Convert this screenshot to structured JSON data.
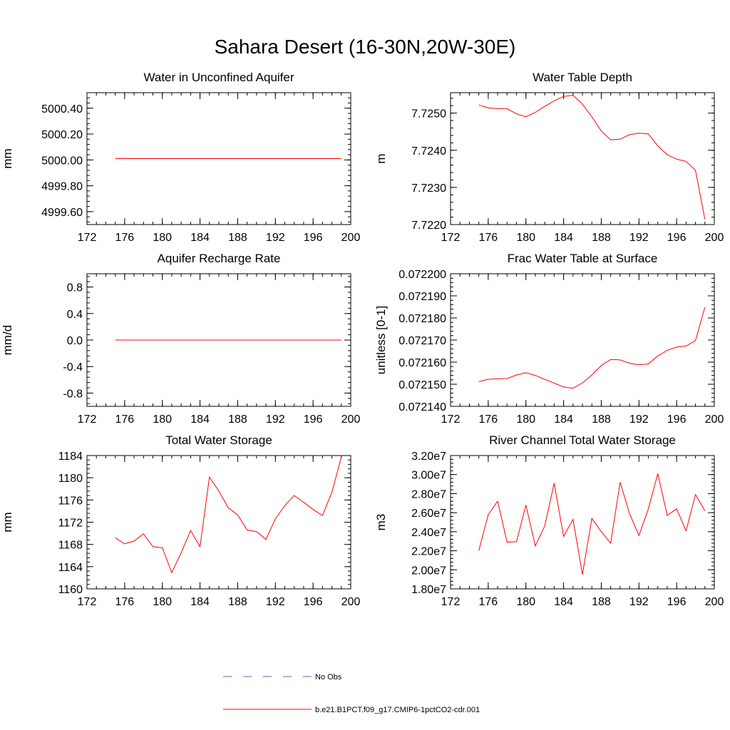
{
  "title": "Sahara Desert (16-30N,20W-30E)",
  "legend": {
    "items": [
      {
        "label": "No Obs",
        "color": "#5c5cc8",
        "style": "dashed"
      },
      {
        "label": "b.e21.B1PCT.f09_g17.CMIP6-1pctCO2-cdr.001",
        "color": "#ff0000",
        "style": "solid"
      }
    ]
  },
  "chart_data": [
    {
      "type": "line",
      "title": "Water in Unconfined Aquifer",
      "ylabel": "mm",
      "xlim": [
        172,
        200
      ],
      "ylim": [
        4999.5,
        5000.52
      ],
      "xticks": [
        172,
        176,
        180,
        184,
        188,
        192,
        196,
        200
      ],
      "xtick_labels": [
        "172",
        "176",
        "180",
        "184",
        "188",
        "192",
        "196",
        "200"
      ],
      "yticks": [
        4999.6,
        4999.8,
        5000.0,
        5000.2,
        5000.4
      ],
      "ytick_labels": [
        "4999.60",
        "4999.80",
        "5000.00",
        "5000.20",
        "5000.40"
      ],
      "series": [
        {
          "color": "#ff0000",
          "x": [
            175,
            176,
            177,
            178,
            179,
            180,
            181,
            182,
            183,
            184,
            185,
            186,
            187,
            188,
            189,
            190,
            191,
            192,
            193,
            194,
            195,
            196,
            197,
            198,
            199
          ],
          "y": [
            5000.01,
            5000.01,
            5000.01,
            5000.01,
            5000.01,
            5000.01,
            5000.01,
            5000.01,
            5000.01,
            5000.01,
            5000.01,
            5000.01,
            5000.01,
            5000.01,
            5000.01,
            5000.01,
            5000.01,
            5000.01,
            5000.01,
            5000.01,
            5000.01,
            5000.01,
            5000.01,
            5000.01,
            5000.01
          ]
        }
      ]
    },
    {
      "type": "line",
      "title": "Water Table Depth",
      "ylabel": "m",
      "xlim": [
        172,
        200
      ],
      "ylim": [
        7.722,
        7.72555
      ],
      "xticks": [
        172,
        176,
        180,
        184,
        188,
        192,
        196,
        200
      ],
      "xtick_labels": [
        "172",
        "176",
        "180",
        "184",
        "188",
        "192",
        "196",
        "200"
      ],
      "yticks": [
        7.722,
        7.723,
        7.724,
        7.725
      ],
      "ytick_labels": [
        "7.7220",
        "7.7230",
        "7.7240",
        "7.7250"
      ],
      "series": [
        {
          "color": "#ff0000",
          "x": [
            175,
            176,
            177,
            178,
            179,
            180,
            181,
            182,
            183,
            184,
            185,
            186,
            187,
            188,
            189,
            190,
            191,
            192,
            193,
            194,
            195,
            196,
            197,
            198,
            199
          ],
          "y": [
            7.72522,
            7.72514,
            7.72512,
            7.72512,
            7.72498,
            7.7249,
            7.72502,
            7.72518,
            7.72533,
            7.72545,
            7.72548,
            7.72524,
            7.7249,
            7.72452,
            7.72428,
            7.7243,
            7.72442,
            7.72446,
            7.72444,
            7.72412,
            7.72388,
            7.72376,
            7.7237,
            7.72346,
            7.72214
          ]
        }
      ]
    },
    {
      "type": "line",
      "title": "Aquifer Recharge Rate",
      "ylabel": "mm/d",
      "xlim": [
        172,
        200
      ],
      "ylim": [
        -1.0,
        1.0
      ],
      "xticks": [
        172,
        176,
        180,
        184,
        188,
        192,
        196,
        200
      ],
      "xtick_labels": [
        "172",
        "176",
        "180",
        "184",
        "188",
        "192",
        "196",
        "200"
      ],
      "yticks": [
        -0.8,
        -0.4,
        0.0,
        0.4,
        0.8
      ],
      "ytick_labels": [
        "-0.8",
        "-0.4",
        "0.0",
        "0.4",
        "0.8"
      ],
      "series": [
        {
          "color": "#ff0000",
          "x": [
            175,
            176,
            177,
            178,
            179,
            180,
            181,
            182,
            183,
            184,
            185,
            186,
            187,
            188,
            189,
            190,
            191,
            192,
            193,
            194,
            195,
            196,
            197,
            198,
            199
          ],
          "y": [
            0,
            0,
            0,
            0,
            0,
            0,
            0,
            0,
            0,
            0,
            0,
            0,
            0,
            0,
            0,
            0,
            0,
            0,
            0,
            0,
            0,
            0,
            0,
            0,
            0
          ]
        }
      ]
    },
    {
      "type": "line",
      "title": "Frac Water Table at Surface",
      "ylabel": "unitless [0-1]",
      "xlim": [
        172,
        200
      ],
      "ylim": [
        0.07214,
        0.0722
      ],
      "xticks": [
        172,
        176,
        180,
        184,
        188,
        192,
        196,
        200
      ],
      "xtick_labels": [
        "172",
        "176",
        "180",
        "184",
        "188",
        "192",
        "196",
        "200"
      ],
      "yticks": [
        0.07214,
        0.07215,
        0.07216,
        0.07217,
        0.07218,
        0.07219,
        0.0722
      ],
      "ytick_labels": [
        "0.072140",
        "0.072150",
        "0.072160",
        "0.072170",
        "0.072180",
        "0.072190",
        "0.072200"
      ],
      "series": [
        {
          "color": "#ff0000",
          "x": [
            175,
            176,
            177,
            178,
            179,
            180,
            181,
            182,
            183,
            184,
            185,
            186,
            187,
            188,
            189,
            190,
            191,
            192,
            193,
            194,
            195,
            196,
            197,
            198,
            199
          ],
          "y": [
            0.0721512,
            0.0721522,
            0.0721525,
            0.0721526,
            0.0721542,
            0.0721552,
            0.072154,
            0.0721522,
            0.0721505,
            0.0721488,
            0.0721482,
            0.0721506,
            0.0721542,
            0.0721585,
            0.0721612,
            0.072161,
            0.0721595,
            0.0721588,
            0.0721592,
            0.0721628,
            0.0721653,
            0.0721668,
            0.0721673,
            0.0721698,
            0.0721848
          ]
        }
      ]
    },
    {
      "type": "line",
      "title": "Total Water Storage",
      "ylabel": "mm",
      "xlim": [
        172,
        200
      ],
      "ylim": [
        1160,
        1184
      ],
      "xticks": [
        172,
        176,
        180,
        184,
        188,
        192,
        196,
        200
      ],
      "xtick_labels": [
        "172",
        "176",
        "180",
        "184",
        "188",
        "192",
        "196",
        "200"
      ],
      "yticks": [
        1160,
        1164,
        1168,
        1172,
        1176,
        1180,
        1184
      ],
      "ytick_labels": [
        "1160",
        "1164",
        "1168",
        "1172",
        "1176",
        "1180",
        "1184"
      ],
      "series": [
        {
          "color": "#ff0000",
          "x": [
            175,
            176,
            177,
            178,
            179,
            180,
            181,
            182,
            183,
            184,
            185,
            186,
            187,
            188,
            189,
            190,
            191,
            192,
            193,
            194,
            195,
            196,
            197,
            198,
            199
          ],
          "y": [
            1169.2,
            1168.1,
            1168.6,
            1169.9,
            1167.6,
            1167.4,
            1162.9,
            1166.5,
            1170.5,
            1167.6,
            1180.1,
            1177.6,
            1174.6,
            1173.3,
            1170.6,
            1170.3,
            1168.9,
            1172.6,
            1175.0,
            1176.8,
            1175.6,
            1174.3,
            1173.2,
            1177.4,
            1183.7
          ]
        }
      ]
    },
    {
      "type": "line",
      "title": "River Channel Total Water Storage",
      "ylabel": "m3",
      "xlim": [
        172,
        200
      ],
      "ylim": [
        18000000,
        32000000
      ],
      "xticks": [
        172,
        176,
        180,
        184,
        188,
        192,
        196,
        200
      ],
      "xtick_labels": [
        "172",
        "176",
        "180",
        "184",
        "188",
        "192",
        "196",
        "200"
      ],
      "yticks": [
        18000000,
        20000000,
        22000000,
        24000000,
        26000000,
        28000000,
        30000000,
        32000000
      ],
      "ytick_labels": [
        "1.80e7",
        "2.00e7",
        "2.20e7",
        "2.40e7",
        "2.60e7",
        "2.80e7",
        "3.00e7",
        "3.20e7"
      ],
      "series": [
        {
          "color": "#ff0000",
          "x": [
            175,
            176,
            177,
            178,
            179,
            180,
            181,
            182,
            183,
            184,
            185,
            186,
            187,
            188,
            189,
            190,
            191,
            192,
            193,
            194,
            195,
            196,
            197,
            198,
            199
          ],
          "y": [
            22000000,
            25800000,
            27200000,
            22900000,
            22950000,
            26800000,
            22500000,
            24600000,
            29100000,
            23500000,
            25300000,
            19500000,
            25400000,
            24000000,
            22800000,
            29200000,
            25900000,
            23600000,
            26400000,
            30100000,
            25700000,
            26400000,
            24100000,
            27900000,
            26200000
          ]
        }
      ]
    }
  ]
}
